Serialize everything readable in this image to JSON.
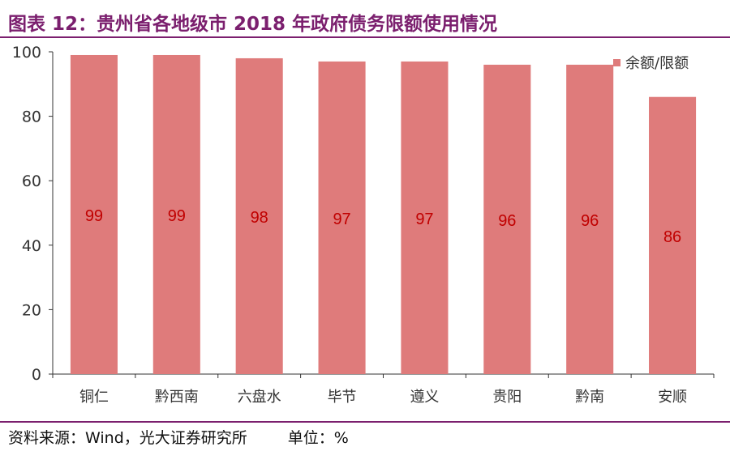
{
  "header": {
    "title": "图表 12：贵州省各地级市 2018 年政府债务限额使用情况"
  },
  "footer": {
    "source": "资料来源：Wind，光大证券研究所",
    "unit": "单位：%"
  },
  "colors": {
    "bar": "#df7b7b",
    "label": "#c00000",
    "title": "#7b1f6e",
    "axis": "#333333"
  },
  "chart_data": {
    "type": "bar",
    "categories": [
      "铜仁",
      "黔西南",
      "六盘水",
      "毕节",
      "遵义",
      "贵阳",
      "黔南",
      "安顺"
    ],
    "series": [
      {
        "name": "余额/限额",
        "values": [
          99,
          99,
          98,
          97,
          97,
          96,
          96,
          86
        ]
      }
    ],
    "ylim": [
      0,
      100
    ],
    "yticks": [
      0,
      20,
      40,
      60,
      80,
      100
    ],
    "legend": "top-right",
    "grid": false
  }
}
